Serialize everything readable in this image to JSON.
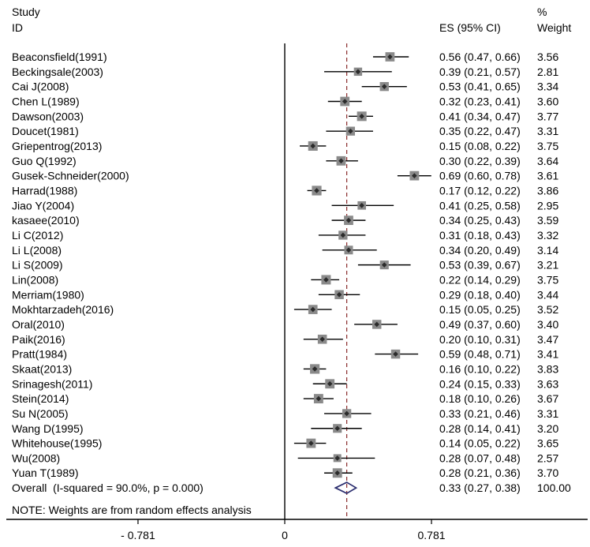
{
  "chart_data": {
    "type": "scatter",
    "error_bars": true,
    "grid": false,
    "columns": {
      "study": "Study",
      "id": "ID",
      "es": "ES (95% CI)",
      "pct": "%",
      "weight": "Weight"
    },
    "studies": [
      {
        "label": "Beaconsfield(1991)",
        "es": 0.56,
        "ci": [
          0.47,
          0.66
        ],
        "weight": 3.56
      },
      {
        "label": "Beckingsale(2003)",
        "es": 0.39,
        "ci": [
          0.21,
          0.57
        ],
        "weight": 2.81
      },
      {
        "label": "Cai J(2008)",
        "es": 0.53,
        "ci": [
          0.41,
          0.65
        ],
        "weight": 3.34
      },
      {
        "label": "Chen L(1989)",
        "es": 0.32,
        "ci": [
          0.23,
          0.41
        ],
        "weight": 3.6
      },
      {
        "label": "Dawson(2003)",
        "es": 0.41,
        "ci": [
          0.34,
          0.47
        ],
        "weight": 3.77
      },
      {
        "label": "Doucet(1981)",
        "es": 0.35,
        "ci": [
          0.22,
          0.47
        ],
        "weight": 3.31
      },
      {
        "label": "Griepentrog(2013)",
        "es": 0.15,
        "ci": [
          0.08,
          0.22
        ],
        "weight": 3.75
      },
      {
        "label": "Guo Q(1992)",
        "es": 0.3,
        "ci": [
          0.22,
          0.39
        ],
        "weight": 3.64
      },
      {
        "label": "Gusek-Schneider(2000)",
        "es": 0.69,
        "ci": [
          0.6,
          0.78
        ],
        "weight": 3.61
      },
      {
        "label": "Harrad(1988)",
        "es": 0.17,
        "ci": [
          0.12,
          0.22
        ],
        "weight": 3.86
      },
      {
        "label": "Jiao Y(2004)",
        "es": 0.41,
        "ci": [
          0.25,
          0.58
        ],
        "weight": 2.95
      },
      {
        "label": "kasaee(2010)",
        "es": 0.34,
        "ci": [
          0.25,
          0.43
        ],
        "weight": 3.59
      },
      {
        "label": "Li C(2012)",
        "es": 0.31,
        "ci": [
          0.18,
          0.43
        ],
        "weight": 3.32
      },
      {
        "label": "Li L(2008)",
        "es": 0.34,
        "ci": [
          0.2,
          0.49
        ],
        "weight": 3.14
      },
      {
        "label": "Li S(2009)",
        "es": 0.53,
        "ci": [
          0.39,
          0.67
        ],
        "weight": 3.21
      },
      {
        "label": "Lin(2008)",
        "es": 0.22,
        "ci": [
          0.14,
          0.29
        ],
        "weight": 3.75
      },
      {
        "label": "Merriam(1980)",
        "es": 0.29,
        "ci": [
          0.18,
          0.4
        ],
        "weight": 3.44
      },
      {
        "label": "Mokhtarzadeh(2016)",
        "es": 0.15,
        "ci": [
          0.05,
          0.25
        ],
        "weight": 3.52
      },
      {
        "label": "Oral(2010)",
        "es": 0.49,
        "ci": [
          0.37,
          0.6
        ],
        "weight": 3.4
      },
      {
        "label": "Paik(2016)",
        "es": 0.2,
        "ci": [
          0.1,
          0.31
        ],
        "weight": 3.47
      },
      {
        "label": "Pratt(1984)",
        "es": 0.59,
        "ci": [
          0.48,
          0.71
        ],
        "weight": 3.41
      },
      {
        "label": "Skaat(2013)",
        "es": 0.16,
        "ci": [
          0.1,
          0.22
        ],
        "weight": 3.83
      },
      {
        "label": "Srinagesh(2011)",
        "es": 0.24,
        "ci": [
          0.15,
          0.33
        ],
        "weight": 3.63
      },
      {
        "label": "Stein(2014)",
        "es": 0.18,
        "ci": [
          0.1,
          0.26
        ],
        "weight": 3.67
      },
      {
        "label": "Su N(2005)",
        "es": 0.33,
        "ci": [
          0.21,
          0.46
        ],
        "weight": 3.31
      },
      {
        "label": "Wang D(1995)",
        "es": 0.28,
        "ci": [
          0.14,
          0.41
        ],
        "weight": 3.2
      },
      {
        "label": "Whitehouse(1995)",
        "es": 0.14,
        "ci": [
          0.05,
          0.22
        ],
        "weight": 3.65
      },
      {
        "label": "Wu(2008)",
        "es": 0.28,
        "ci": [
          0.07,
          0.48
        ],
        "weight": 2.57
      },
      {
        "label": "Yuan T(1989)",
        "es": 0.28,
        "ci": [
          0.21,
          0.36
        ],
        "weight": 3.7
      }
    ],
    "overall": {
      "label": "Overall  (I-squared = 90.0%, p = 0.000)",
      "es": 0.33,
      "ci": [
        0.27,
        0.38
      ],
      "weight": 100.0
    },
    "note": "NOTE: Weights are from random effects analysis",
    "null_value": 0,
    "x_ticks": [
      -0.781,
      0,
      0.781
    ],
    "x_tick_labels": [
      "- 0.781",
      "0",
      "0.781"
    ],
    "colors": {
      "box": "#8a8a8a",
      "marker": "#2b2b2b",
      "ci_line": "#000000",
      "null_line": "#000000",
      "overall_line": "#8b2e2e",
      "diamond": "#2a2d6e",
      "axis": "#000000"
    }
  }
}
